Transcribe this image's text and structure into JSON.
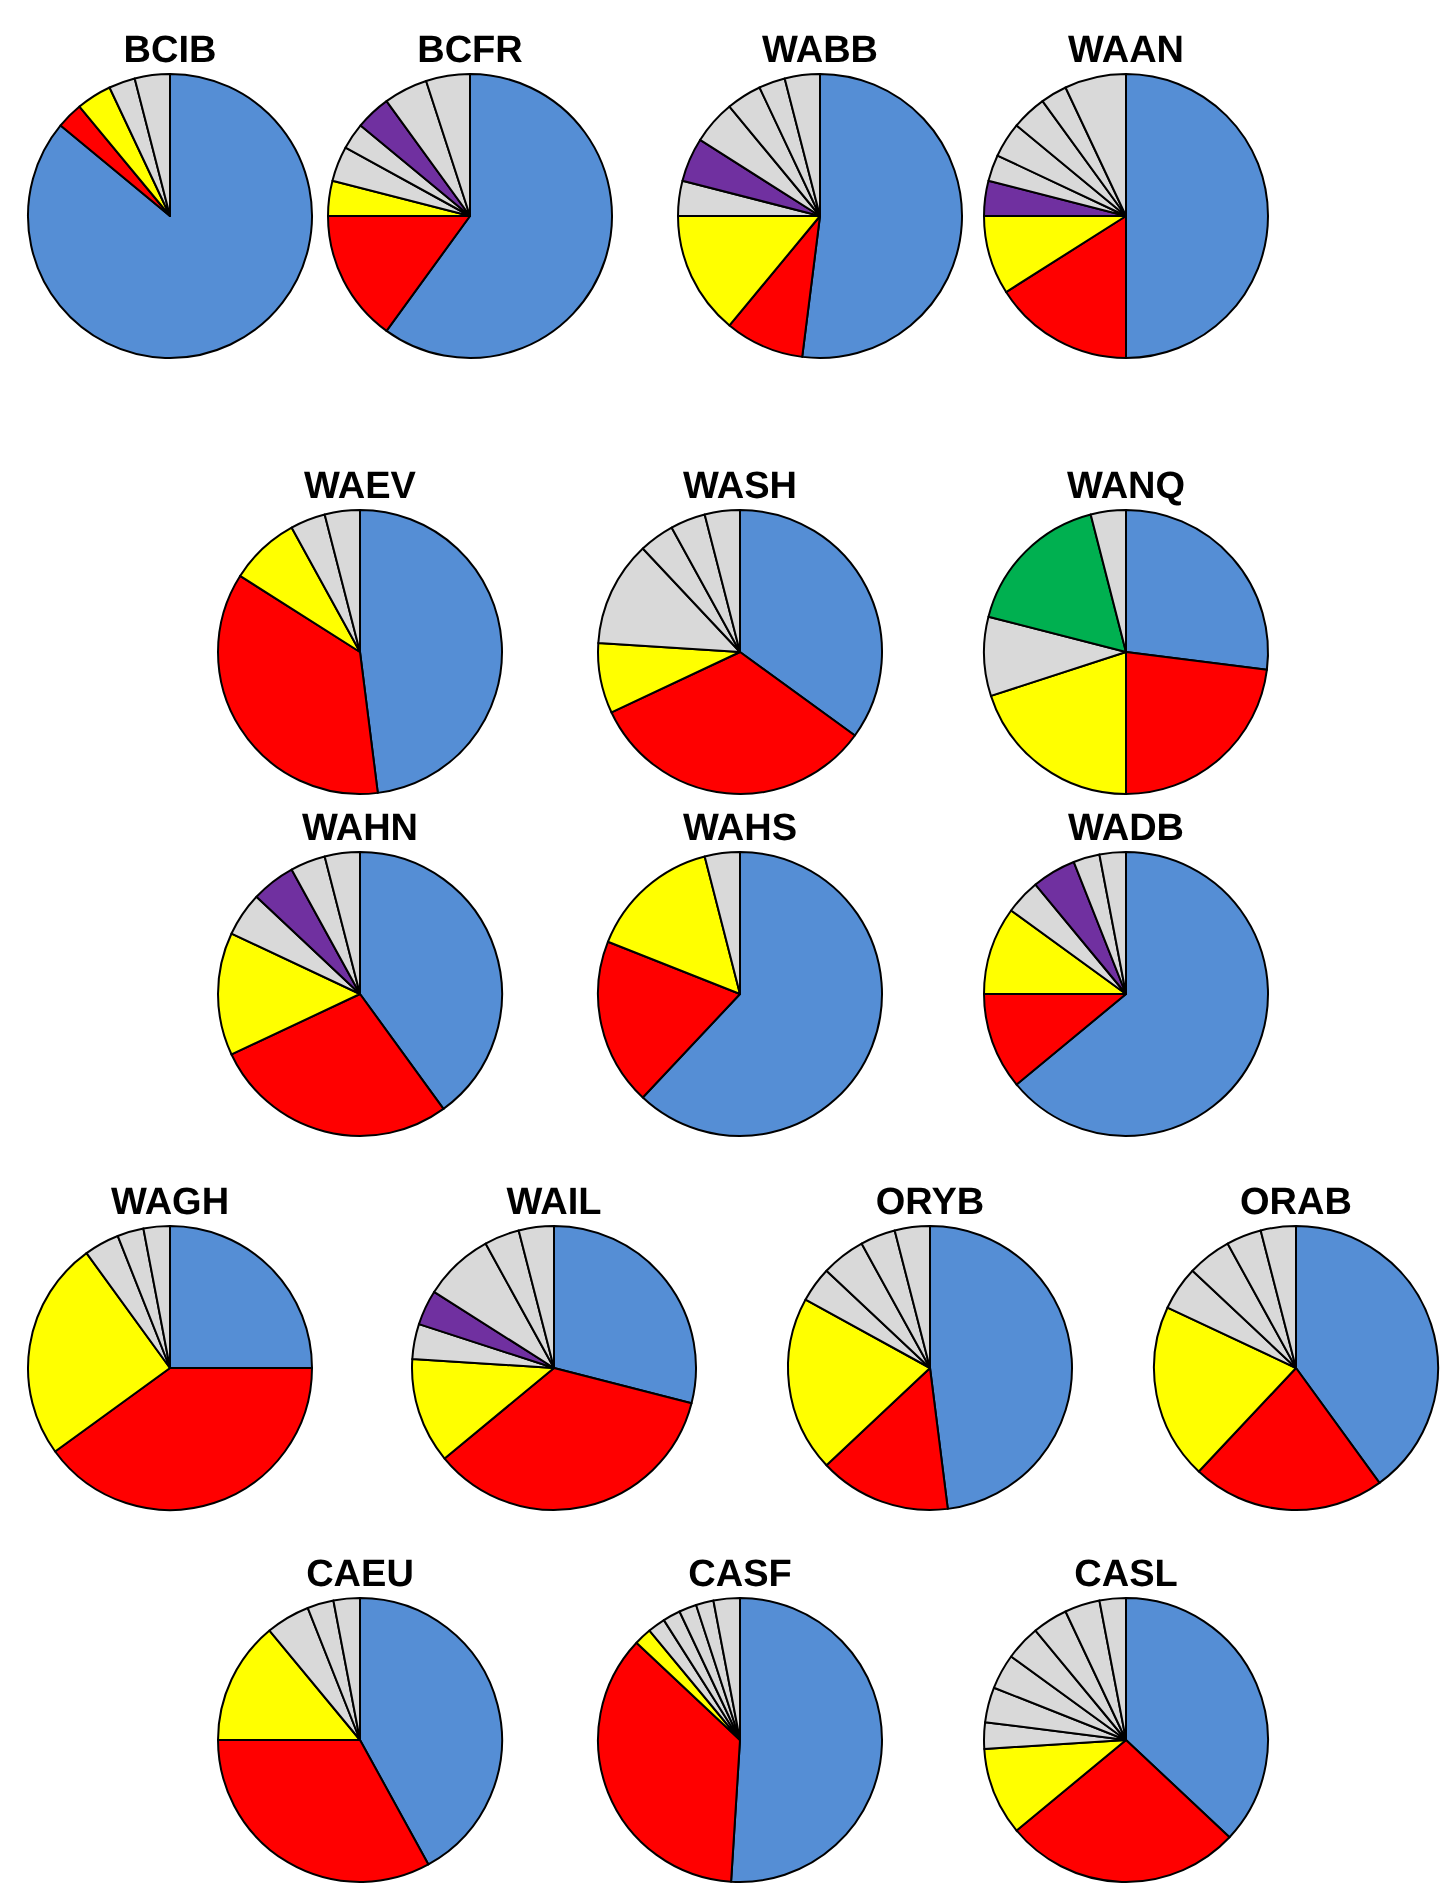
{
  "chart_data": [
    {
      "type": "pie",
      "title": "BCIB",
      "categories": [
        null,
        null,
        null,
        null,
        null
      ],
      "values": [
        86,
        3,
        4,
        3,
        4
      ],
      "colors": [
        "#558ed5",
        "#ff0000",
        "#ffff00",
        "#d9d9d9",
        "#d9d9d9"
      ]
    },
    {
      "type": "pie",
      "title": "BCFR",
      "categories": [
        null,
        null,
        null,
        null,
        null,
        null,
        null,
        null
      ],
      "values": [
        60,
        15,
        4,
        4,
        3,
        4,
        5,
        5
      ],
      "colors": [
        "#558ed5",
        "#ff0000",
        "#ffff00",
        "#d9d9d9",
        "#d9d9d9",
        "#7030a0",
        "#d9d9d9",
        "#d9d9d9"
      ]
    },
    {
      "type": "pie",
      "title": "WABB",
      "categories": [
        null,
        null,
        null,
        null,
        null,
        null,
        null,
        null,
        null
      ],
      "values": [
        52,
        9,
        14,
        4,
        5,
        5,
        4,
        3,
        4
      ],
      "colors": [
        "#558ed5",
        "#ff0000",
        "#ffff00",
        "#d9d9d9",
        "#7030a0",
        "#d9d9d9",
        "#d9d9d9",
        "#d9d9d9",
        "#d9d9d9"
      ]
    },
    {
      "type": "pie",
      "title": "WAAN",
      "categories": [
        null,
        null,
        null,
        null,
        null,
        null,
        null,
        null,
        null
      ],
      "values": [
        50,
        16,
        9,
        4,
        3,
        4,
        4,
        3,
        7
      ],
      "colors": [
        "#558ed5",
        "#ff0000",
        "#ffff00",
        "#7030a0",
        "#d9d9d9",
        "#d9d9d9",
        "#d9d9d9",
        "#d9d9d9",
        "#d9d9d9"
      ]
    },
    {
      "type": "pie",
      "title": "WAEV",
      "categories": [
        null,
        null,
        null,
        null,
        null
      ],
      "values": [
        48,
        36,
        8,
        4,
        4
      ],
      "colors": [
        "#558ed5",
        "#ff0000",
        "#ffff00",
        "#d9d9d9",
        "#d9d9d9"
      ]
    },
    {
      "type": "pie",
      "title": "WASH",
      "categories": [
        null,
        null,
        null,
        null,
        null,
        null,
        null
      ],
      "values": [
        35,
        33,
        8,
        12,
        4,
        4,
        4
      ],
      "colors": [
        "#558ed5",
        "#ff0000",
        "#ffff00",
        "#d9d9d9",
        "#d9d9d9",
        "#d9d9d9",
        "#d9d9d9"
      ]
    },
    {
      "type": "pie",
      "title": "WANQ",
      "categories": [
        null,
        null,
        null,
        null,
        null,
        null
      ],
      "values": [
        27,
        23,
        20,
        9,
        17,
        4
      ],
      "colors": [
        "#558ed5",
        "#ff0000",
        "#ffff00",
        "#d9d9d9",
        "#00b050",
        "#d9d9d9"
      ]
    },
    {
      "type": "pie",
      "title": "WAHN",
      "categories": [
        null,
        null,
        null,
        null,
        null,
        null,
        null
      ],
      "values": [
        40,
        28,
        14,
        5,
        5,
        4,
        4
      ],
      "colors": [
        "#558ed5",
        "#ff0000",
        "#ffff00",
        "#d9d9d9",
        "#7030a0",
        "#d9d9d9",
        "#d9d9d9"
      ]
    },
    {
      "type": "pie",
      "title": "WAHS",
      "categories": [
        null,
        null,
        null,
        null
      ],
      "values": [
        62,
        19,
        15,
        4
      ],
      "colors": [
        "#558ed5",
        "#ff0000",
        "#ffff00",
        "#d9d9d9"
      ]
    },
    {
      "type": "pie",
      "title": "WADB",
      "categories": [
        null,
        null,
        null,
        null,
        null,
        null,
        null
      ],
      "values": [
        64,
        11,
        10,
        4,
        5,
        3,
        3
      ],
      "colors": [
        "#558ed5",
        "#ff0000",
        "#ffff00",
        "#d9d9d9",
        "#7030a0",
        "#d9d9d9",
        "#d9d9d9"
      ]
    },
    {
      "type": "pie",
      "title": "WAGH",
      "categories": [
        null,
        null,
        null,
        null,
        null,
        null
      ],
      "values": [
        25,
        40,
        25,
        4,
        3,
        3
      ],
      "colors": [
        "#558ed5",
        "#ff0000",
        "#ffff00",
        "#d9d9d9",
        "#d9d9d9",
        "#d9d9d9"
      ]
    },
    {
      "type": "pie",
      "title": "WAIL",
      "categories": [
        null,
        null,
        null,
        null,
        null,
        null,
        null,
        null
      ],
      "values": [
        29,
        35,
        12,
        4,
        4,
        8,
        4,
        4
      ],
      "colors": [
        "#558ed5",
        "#ff0000",
        "#ffff00",
        "#d9d9d9",
        "#7030a0",
        "#d9d9d9",
        "#d9d9d9",
        "#d9d9d9"
      ]
    },
    {
      "type": "pie",
      "title": "ORYB",
      "categories": [
        null,
        null,
        null,
        null,
        null,
        null,
        null
      ],
      "values": [
        48,
        15,
        20,
        4,
        5,
        4,
        4
      ],
      "colors": [
        "#558ed5",
        "#ff0000",
        "#ffff00",
        "#d9d9d9",
        "#d9d9d9",
        "#d9d9d9",
        "#d9d9d9"
      ]
    },
    {
      "type": "pie",
      "title": "ORAB",
      "categories": [
        null,
        null,
        null,
        null,
        null,
        null,
        null
      ],
      "values": [
        40,
        22,
        20,
        5,
        5,
        4,
        4
      ],
      "colors": [
        "#558ed5",
        "#ff0000",
        "#ffff00",
        "#d9d9d9",
        "#d9d9d9",
        "#d9d9d9",
        "#d9d9d9"
      ]
    },
    {
      "type": "pie",
      "title": "CAEU",
      "categories": [
        null,
        null,
        null,
        null,
        null,
        null
      ],
      "values": [
        42,
        33,
        14,
        5,
        3,
        3
      ],
      "colors": [
        "#558ed5",
        "#ff0000",
        "#ffff00",
        "#d9d9d9",
        "#d9d9d9",
        "#d9d9d9"
      ]
    },
    {
      "type": "pie",
      "title": "CASF",
      "categories": [
        null,
        null,
        null,
        null,
        null,
        null,
        null,
        null
      ],
      "values": [
        51,
        36,
        2,
        2,
        2,
        2,
        2,
        3
      ],
      "colors": [
        "#558ed5",
        "#ff0000",
        "#ffff00",
        "#d9d9d9",
        "#d9d9d9",
        "#d9d9d9",
        "#d9d9d9",
        "#d9d9d9"
      ]
    },
    {
      "type": "pie",
      "title": "CASL",
      "categories": [
        null,
        null,
        null,
        null,
        null,
        null,
        null,
        null,
        null,
        null
      ],
      "values": [
        37,
        27,
        10,
        3,
        4,
        4,
        4,
        4,
        4,
        3
      ],
      "colors": [
        "#558ed5",
        "#ff0000",
        "#ffff00",
        "#d9d9d9",
        "#d9d9d9",
        "#d9d9d9",
        "#d9d9d9",
        "#d9d9d9",
        "#d9d9d9",
        "#d9d9d9"
      ]
    }
  ]
}
